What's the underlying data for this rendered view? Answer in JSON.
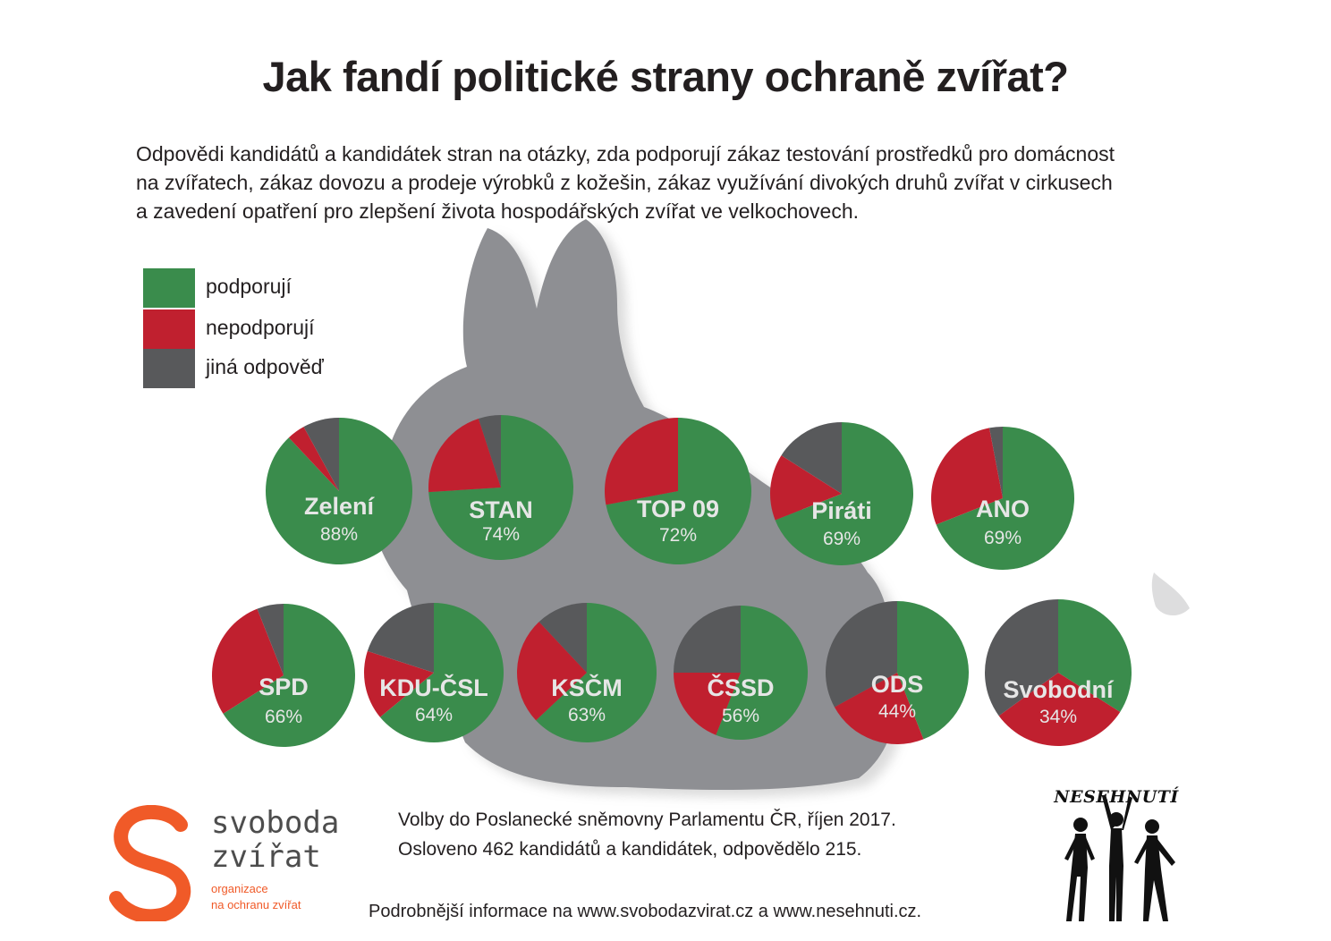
{
  "title": "Jak fandí politické strany ochraně zvířat?",
  "subtitle_lines": [
    "Odpovědi kandidátů a kandidátek stran na otázky, zda podporují zákaz testování prostředků pro domácnost",
    "na zvířatech, zákaz dovozu a prodeje výrobků z kožešin, zákaz využívání divokých druhů zvířat v cirkusech",
    "a zavedení opatření pro zlepšení života hospodářských zvířat ve velkochovech."
  ],
  "colors": {
    "support": "#3a8c4c",
    "oppose": "#c0202f",
    "other": "#58595b",
    "rabbit": "#8e8f93",
    "brand_orange": "#f05a28"
  },
  "chart_data": {
    "type": "pie",
    "legend": [
      "podporují",
      "nepodporují",
      "jiná odpověď"
    ],
    "legend_placement": "top-left",
    "pies": [
      {
        "party": "Zelení",
        "label": "88%",
        "support": 88,
        "oppose": 4,
        "other": 8
      },
      {
        "party": "STAN",
        "label": "74%",
        "support": 74,
        "oppose": 21,
        "other": 5
      },
      {
        "party": "TOP 09",
        "label": "72%",
        "support": 72,
        "oppose": 28,
        "other": 0
      },
      {
        "party": "Piráti",
        "label": "69%",
        "support": 69,
        "oppose": 15,
        "other": 16
      },
      {
        "party": "ANO",
        "label": "69%",
        "support": 69,
        "oppose": 28,
        "other": 3
      },
      {
        "party": "SPD",
        "label": "66%",
        "support": 66,
        "oppose": 28,
        "other": 6
      },
      {
        "party": "KDU-ČSL",
        "label": "64%",
        "support": 64,
        "oppose": 16,
        "other": 20
      },
      {
        "party": "KSČM",
        "label": "63%",
        "support": 63,
        "oppose": 25,
        "other": 12
      },
      {
        "party": "ČSSD",
        "label": "56%",
        "support": 56,
        "oppose": 19,
        "other": 25
      },
      {
        "party": "ODS",
        "label": "44%",
        "support": 44,
        "oppose": 23,
        "other": 33
      },
      {
        "party": "Svobodní",
        "label": "34%",
        "support": 34,
        "oppose": 31,
        "other": 35
      }
    ]
  },
  "footer": {
    "line1": "Volby do Poslanecké sněmovny Parlamentu ČR, říjen 2017.",
    "line2": "Osloveno 462 kandidátů a kandidátek, odpovědělo 215.",
    "more_info": "Podrobnější informace na www.svobodazvirat.cz a www.nesehnuti.cz."
  },
  "logo_svoboda": {
    "name_line1": "svoboda",
    "name_line2": "zvířat",
    "sub_line1": "organizace",
    "sub_line2": "na ochranu zvířat"
  },
  "logo_nesehnuti": {
    "text": "NESEHNUTÍ"
  }
}
